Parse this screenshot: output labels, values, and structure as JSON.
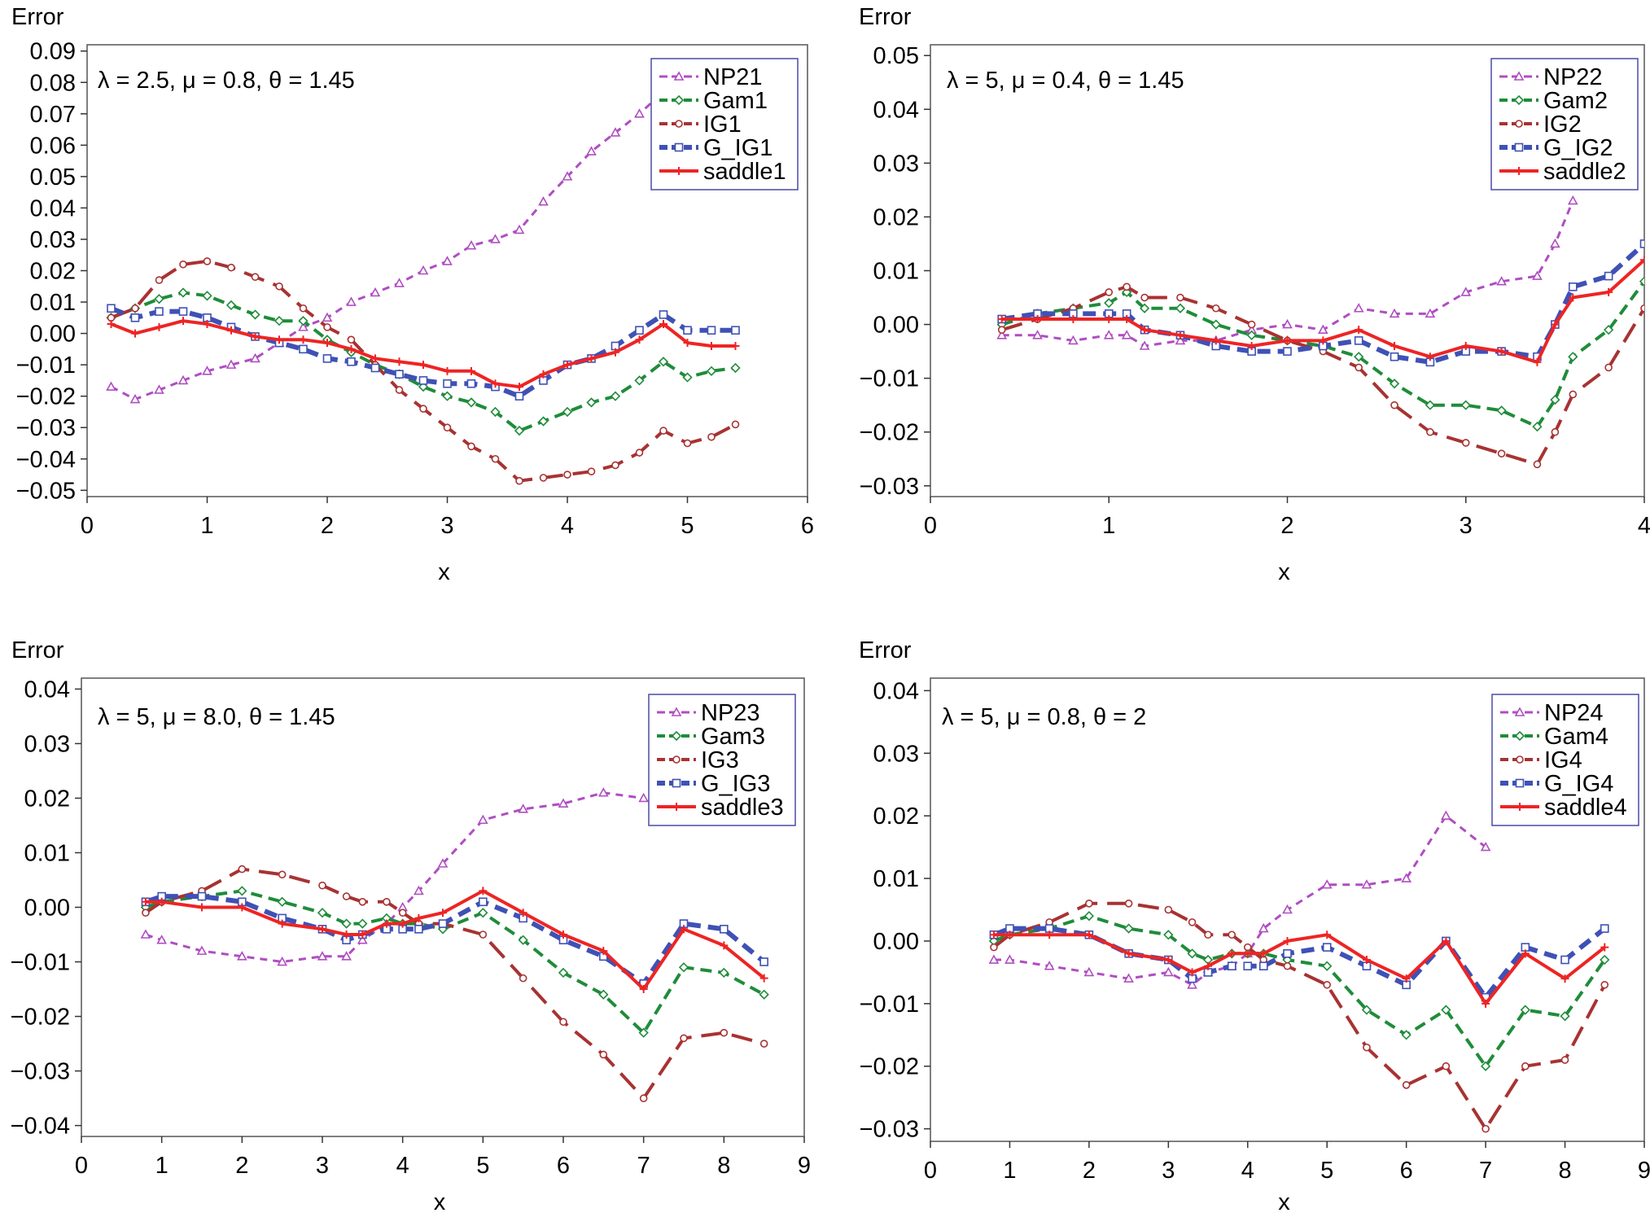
{
  "chart_data": [
    {
      "type": "line",
      "ylabel": "Error",
      "xlabel": "x",
      "annotation": "λ = 2.5, μ = 0.8, θ = 1.45",
      "xlim": [
        0,
        6
      ],
      "ylim": [
        -0.052,
        0.092
      ],
      "xticks": [
        "0",
        "1",
        "2",
        "3",
        "4",
        "5",
        "6"
      ],
      "yticks": [
        "0.09",
        "0.08",
        "0.07",
        "0.06",
        "0.05",
        "0.04",
        "0.03",
        "0.02",
        "0.01",
        "0.00",
        "−0.01",
        "−0.02",
        "−0.03",
        "−0.04",
        "−0.05"
      ],
      "legend_position": "top-right",
      "x": [
        0.2,
        0.4,
        0.6,
        0.8,
        1.0,
        1.2,
        1.4,
        1.6,
        1.8,
        2.0,
        2.2,
        2.4,
        2.6,
        2.8,
        3.0,
        3.2,
        3.4,
        3.6,
        3.8,
        4.0,
        4.2,
        4.4,
        4.6,
        4.8,
        5.0,
        5.2,
        5.4
      ],
      "series": [
        {
          "name": "NP21",
          "values": [
            -0.017,
            -0.021,
            -0.018,
            -0.015,
            -0.012,
            -0.01,
            -0.008,
            -0.003,
            0.002,
            0.005,
            0.01,
            0.013,
            0.016,
            0.02,
            0.023,
            0.028,
            0.03,
            0.033,
            0.042,
            0.05,
            0.058,
            0.064,
            0.07,
            0.077,
            null,
            null,
            null
          ]
        },
        {
          "name": "Gam1",
          "values": [
            0.005,
            0.008,
            0.011,
            0.013,
            0.012,
            0.009,
            0.006,
            0.004,
            0.004,
            -0.002,
            -0.006,
            -0.01,
            -0.013,
            -0.017,
            -0.02,
            -0.022,
            -0.025,
            -0.031,
            -0.028,
            -0.025,
            -0.022,
            -0.02,
            -0.015,
            -0.009,
            -0.014,
            -0.012,
            -0.011
          ]
        },
        {
          "name": "IG1",
          "values": [
            0.005,
            0.008,
            0.017,
            0.022,
            0.023,
            0.021,
            0.018,
            0.015,
            0.008,
            0.002,
            -0.002,
            -0.01,
            -0.018,
            -0.024,
            -0.03,
            -0.036,
            -0.04,
            -0.047,
            -0.046,
            -0.045,
            -0.044,
            -0.042,
            -0.038,
            -0.031,
            -0.035,
            -0.033,
            -0.029
          ]
        },
        {
          "name": "G_IG1",
          "values": [
            0.008,
            0.005,
            0.007,
            0.007,
            0.005,
            0.002,
            -0.001,
            -0.003,
            -0.005,
            -0.008,
            -0.009,
            -0.011,
            -0.013,
            -0.015,
            -0.016,
            -0.016,
            -0.017,
            -0.02,
            -0.015,
            -0.01,
            -0.008,
            -0.004,
            0.001,
            0.006,
            0.001,
            0.001,
            0.001
          ]
        },
        {
          "name": "saddle1",
          "values": [
            0.003,
            0.0,
            0.002,
            0.004,
            0.003,
            0.001,
            -0.001,
            -0.002,
            -0.002,
            -0.003,
            -0.005,
            -0.008,
            -0.009,
            -0.01,
            -0.012,
            -0.012,
            -0.016,
            -0.017,
            -0.013,
            -0.01,
            -0.008,
            -0.006,
            -0.002,
            0.003,
            -0.003,
            -0.004,
            -0.004
          ]
        }
      ]
    },
    {
      "type": "line",
      "ylabel": "Error",
      "xlabel": "x",
      "annotation": "λ = 5, μ = 0.4, θ = 1.45",
      "xlim": [
        0,
        4
      ],
      "ylim": [
        -0.032,
        0.052
      ],
      "xticks": [
        "0",
        "1",
        "2",
        "3",
        "4"
      ],
      "yticks": [
        "0.05",
        "0.04",
        "0.03",
        "0.02",
        "0.01",
        "0.00",
        "−0.01",
        "−0.02",
        "−0.03"
      ],
      "legend_position": "top-right",
      "x": [
        0.4,
        0.6,
        0.8,
        1.0,
        1.1,
        1.2,
        1.4,
        1.6,
        1.8,
        2.0,
        2.2,
        2.4,
        2.6,
        2.8,
        3.0,
        3.2,
        3.4,
        3.5,
        3.6,
        3.8,
        4.0
      ],
      "series": [
        {
          "name": "NP22",
          "values": [
            -0.002,
            -0.002,
            -0.003,
            -0.002,
            -0.002,
            -0.004,
            -0.003,
            -0.003,
            -0.001,
            0.0,
            -0.001,
            0.003,
            0.002,
            0.002,
            0.006,
            0.008,
            0.009,
            0.015,
            0.023,
            null,
            null
          ]
        },
        {
          "name": "Gam2",
          "values": [
            0.0,
            0.002,
            0.003,
            0.004,
            0.006,
            0.003,
            0.003,
            0.0,
            -0.002,
            -0.003,
            -0.004,
            -0.006,
            -0.011,
            -0.015,
            -0.015,
            -0.016,
            -0.019,
            -0.014,
            -0.006,
            -0.001,
            0.008
          ]
        },
        {
          "name": "IG2",
          "values": [
            -0.001,
            0.001,
            0.003,
            0.006,
            0.007,
            0.005,
            0.005,
            0.003,
            0.0,
            -0.003,
            -0.005,
            -0.008,
            -0.015,
            -0.02,
            -0.022,
            -0.024,
            -0.026,
            -0.02,
            -0.013,
            -0.008,
            0.003
          ]
        },
        {
          "name": "G_IG2",
          "values": [
            0.001,
            0.002,
            0.002,
            0.002,
            0.002,
            -0.001,
            -0.002,
            -0.004,
            -0.005,
            -0.005,
            -0.004,
            -0.003,
            -0.006,
            -0.007,
            -0.005,
            -0.005,
            -0.006,
            0.0,
            0.007,
            0.009,
            0.015
          ]
        },
        {
          "name": "saddle2",
          "values": [
            0.001,
            0.001,
            0.001,
            0.001,
            0.001,
            -0.001,
            -0.002,
            -0.003,
            -0.004,
            -0.003,
            -0.003,
            -0.001,
            -0.004,
            -0.006,
            -0.004,
            -0.005,
            -0.007,
            0.0,
            0.005,
            0.006,
            0.012
          ]
        }
      ]
    },
    {
      "type": "line",
      "ylabel": "Error",
      "xlabel": "x",
      "annotation": "λ = 5, μ = 8.0, θ = 1.45",
      "xlim": [
        0,
        9
      ],
      "ylim": [
        -0.042,
        0.042
      ],
      "xticks": [
        "0",
        "1",
        "2",
        "3",
        "4",
        "5",
        "6",
        "7",
        "8",
        "9"
      ],
      "yticks": [
        "0.04",
        "0.03",
        "0.02",
        "0.01",
        "0.00",
        "−0.01",
        "−0.02",
        "−0.03",
        "−0.04"
      ],
      "legend_position": "top-right",
      "x": [
        0.8,
        1.0,
        1.5,
        2.0,
        2.5,
        3.0,
        3.3,
        3.5,
        3.8,
        4.0,
        4.2,
        4.5,
        5.0,
        5.5,
        6.0,
        6.5,
        7.0,
        7.5,
        8.0,
        8.5
      ],
      "series": [
        {
          "name": "NP23",
          "values": [
            -0.005,
            -0.006,
            -0.008,
            -0.009,
            -0.01,
            -0.009,
            -0.009,
            -0.006,
            -0.003,
            0.0,
            0.003,
            0.008,
            0.016,
            0.018,
            0.019,
            0.021,
            0.02,
            null,
            null,
            null
          ]
        },
        {
          "name": "Gam3",
          "values": [
            0.0,
            0.001,
            0.002,
            0.003,
            0.001,
            -0.001,
            -0.003,
            -0.003,
            -0.002,
            -0.003,
            -0.003,
            -0.004,
            -0.001,
            -0.006,
            -0.012,
            -0.016,
            -0.023,
            -0.011,
            -0.012,
            -0.016
          ]
        },
        {
          "name": "IG3",
          "values": [
            -0.001,
            0.001,
            0.003,
            0.007,
            0.006,
            0.004,
            0.002,
            0.001,
            0.001,
            -0.001,
            -0.003,
            -0.003,
            -0.005,
            -0.013,
            -0.021,
            -0.027,
            -0.035,
            -0.024,
            -0.023,
            -0.025
          ]
        },
        {
          "name": "G_IG3",
          "values": [
            0.001,
            0.002,
            0.002,
            0.001,
            -0.002,
            -0.004,
            -0.006,
            -0.005,
            -0.004,
            -0.004,
            -0.004,
            -0.003,
            0.001,
            -0.002,
            -0.006,
            -0.009,
            -0.014,
            -0.003,
            -0.004,
            -0.01
          ]
        },
        {
          "name": "saddle3",
          "values": [
            0.001,
            0.001,
            0.0,
            0.0,
            -0.003,
            -0.004,
            -0.005,
            -0.005,
            -0.003,
            -0.003,
            -0.002,
            -0.001,
            0.003,
            -0.001,
            -0.005,
            -0.008,
            -0.015,
            -0.004,
            -0.007,
            -0.013
          ]
        }
      ]
    },
    {
      "type": "line",
      "ylabel": "Error",
      "xlabel": "x",
      "annotation": "λ = 5, μ = 0.8, θ = 2",
      "xlim": [
        0,
        9
      ],
      "ylim": [
        -0.032,
        0.042
      ],
      "xticks": [
        "0",
        "1",
        "2",
        "3",
        "4",
        "5",
        "6",
        "7",
        "8",
        "9"
      ],
      "yticks": [
        "0.04",
        "0.03",
        "0.02",
        "0.01",
        "0.00",
        "−0.01",
        "−0.02",
        "−0.03"
      ],
      "legend_position": "top-right",
      "x": [
        0.8,
        1.0,
        1.5,
        2.0,
        2.5,
        3.0,
        3.3,
        3.5,
        3.8,
        4.0,
        4.2,
        4.5,
        5.0,
        5.5,
        6.0,
        6.5,
        7.0,
        7.5,
        8.0,
        8.5
      ],
      "series": [
        {
          "name": "NP24",
          "values": [
            -0.003,
            -0.003,
            -0.004,
            -0.005,
            -0.006,
            -0.005,
            -0.007,
            -0.005,
            -0.004,
            -0.002,
            0.002,
            0.005,
            0.009,
            0.009,
            0.01,
            0.02,
            0.015,
            null,
            null,
            null
          ]
        },
        {
          "name": "Gam4",
          "values": [
            0.0,
            0.001,
            0.002,
            0.004,
            0.002,
            0.001,
            -0.002,
            -0.003,
            -0.002,
            -0.002,
            -0.002,
            -0.003,
            -0.004,
            -0.011,
            -0.015,
            -0.011,
            -0.02,
            -0.011,
            -0.012,
            -0.003
          ]
        },
        {
          "name": "IG4",
          "values": [
            -0.001,
            0.001,
            0.003,
            0.006,
            0.006,
            0.005,
            0.003,
            0.001,
            0.001,
            -0.001,
            -0.003,
            -0.004,
            -0.007,
            -0.017,
            -0.023,
            -0.02,
            -0.03,
            -0.02,
            -0.019,
            -0.007
          ]
        },
        {
          "name": "G_IG4",
          "values": [
            0.001,
            0.002,
            0.002,
            0.001,
            -0.002,
            -0.003,
            -0.006,
            -0.005,
            -0.004,
            -0.004,
            -0.004,
            -0.002,
            -0.001,
            -0.004,
            -0.007,
            0.0,
            -0.009,
            -0.001,
            -0.003,
            0.002
          ]
        },
        {
          "name": "saddle4",
          "values": [
            0.001,
            0.001,
            0.001,
            0.001,
            -0.002,
            -0.003,
            -0.005,
            -0.004,
            -0.002,
            -0.002,
            -0.002,
            0.0,
            0.001,
            -0.003,
            -0.006,
            0.0,
            -0.01,
            -0.002,
            -0.006,
            -0.001
          ]
        }
      ]
    }
  ],
  "colors": {
    "np": "#b04dc2",
    "gam": "#1f8c3a",
    "ig": "#a83232",
    "g_ig": "#3f51b5",
    "saddle": "#ee2424"
  }
}
